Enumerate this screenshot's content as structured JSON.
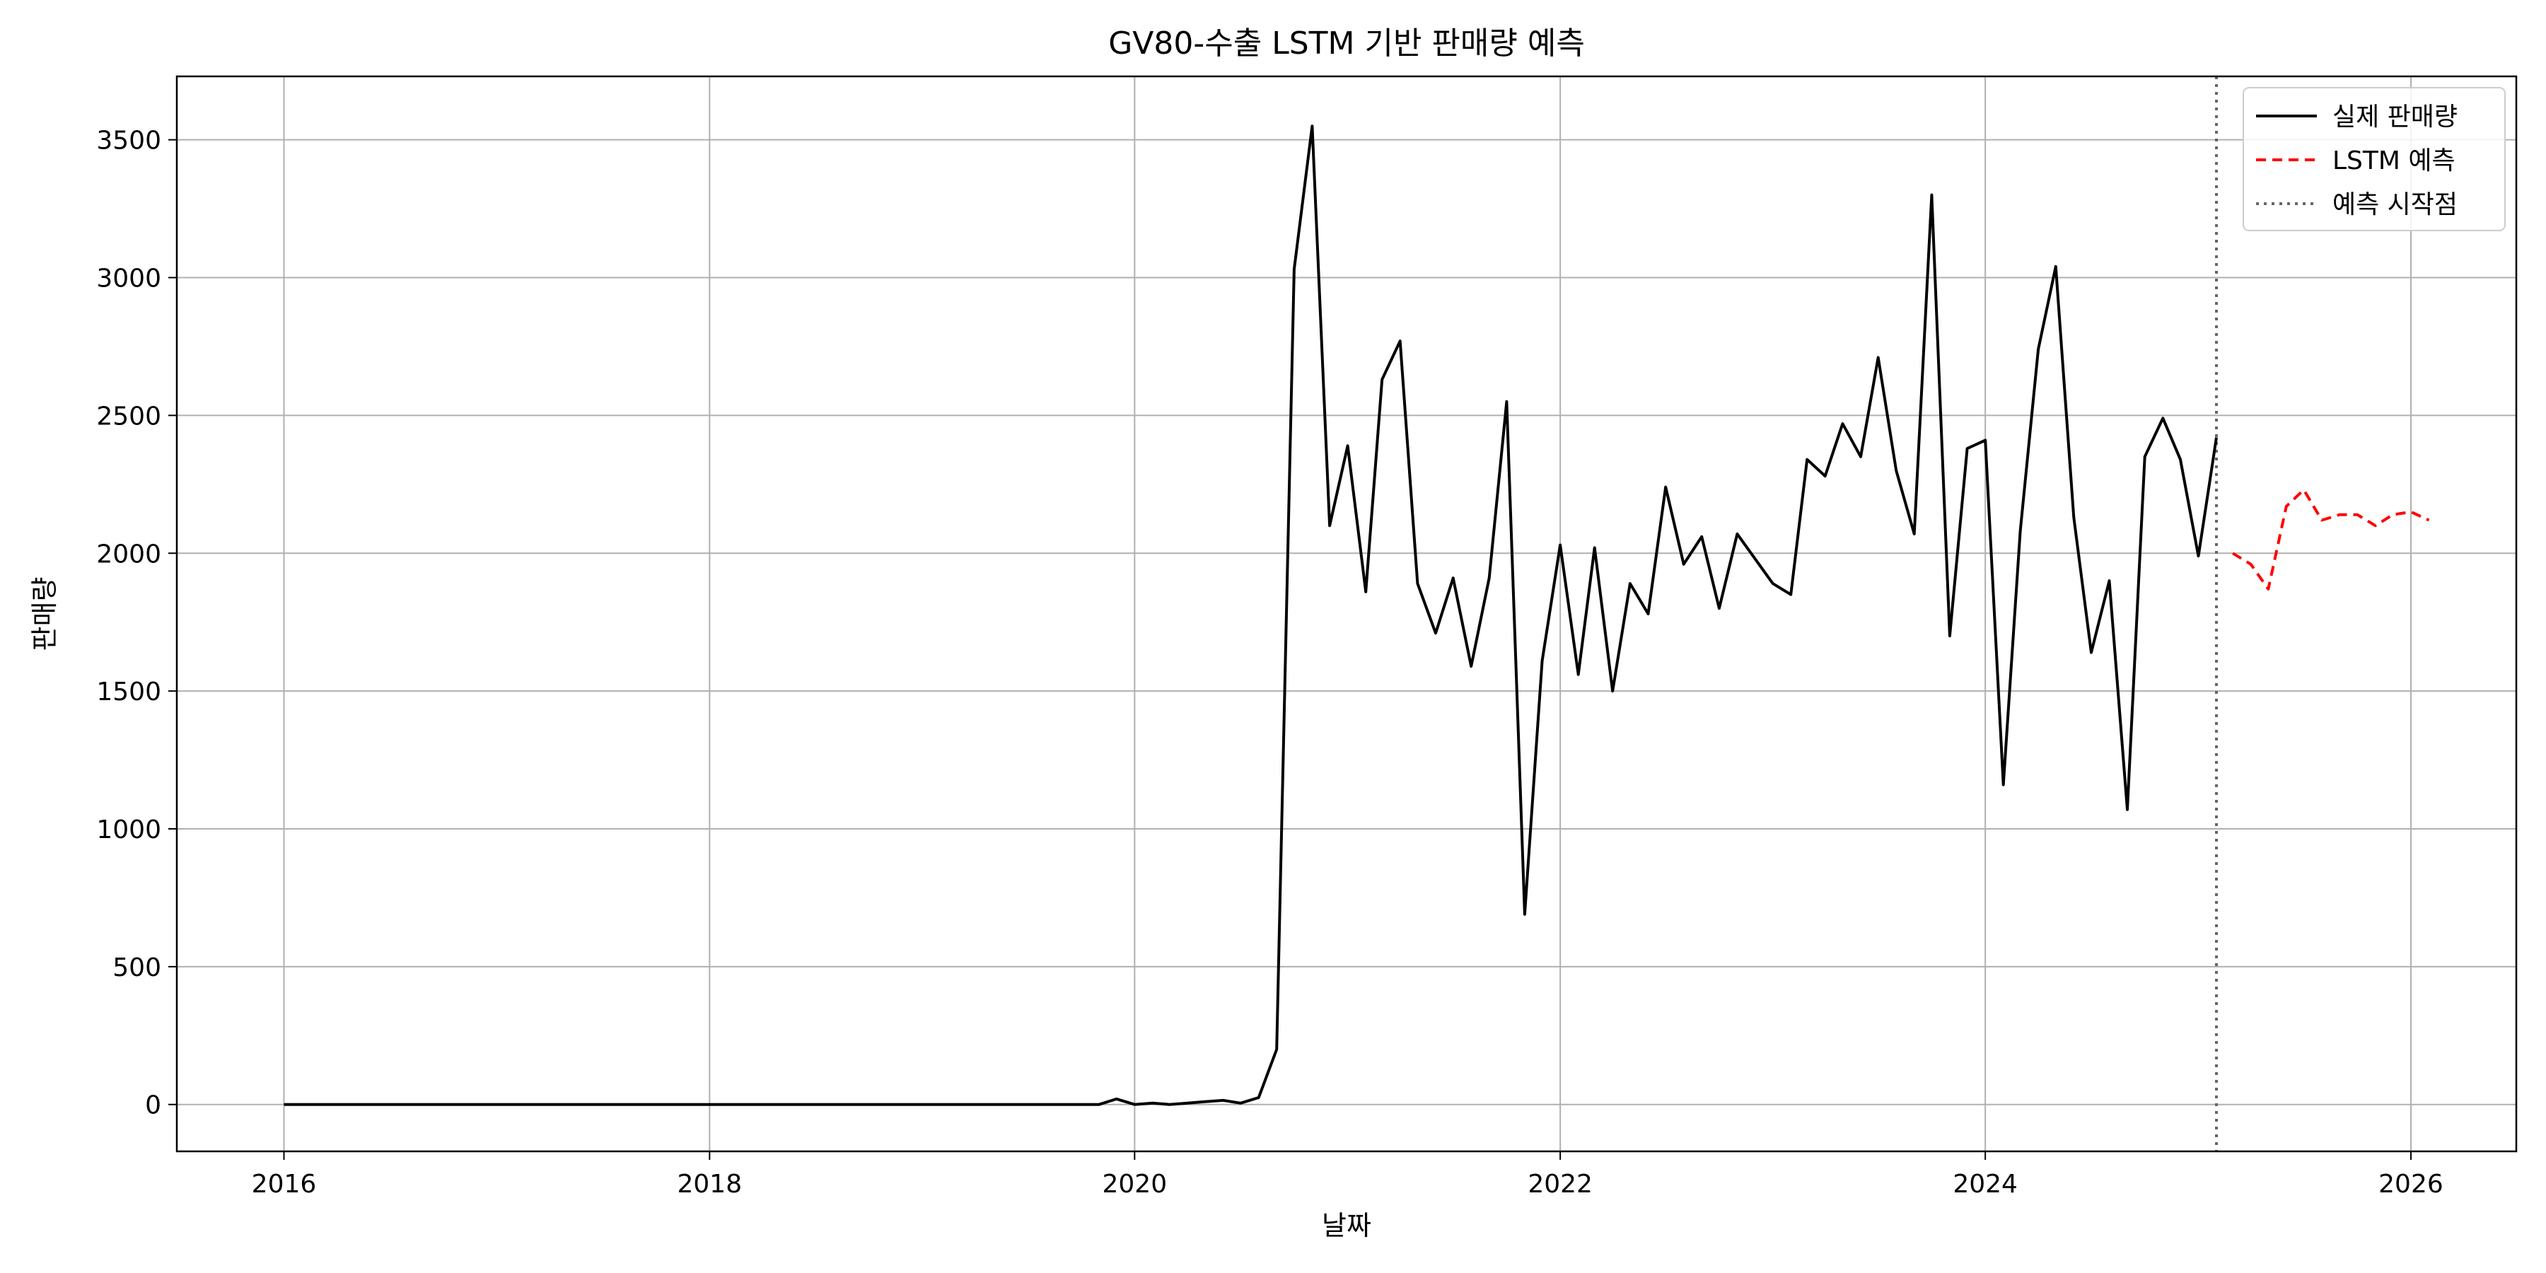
{
  "chart_data": {
    "type": "line",
    "title": "GV80-수출 LSTM 기반 판매량 예측",
    "xlabel": "날짜",
    "ylabel": "판매량",
    "xlim": [
      "2015-07-01",
      "2026-07-01"
    ],
    "ylim": [
      -170,
      3730
    ],
    "xticks": [
      "2016",
      "2018",
      "2020",
      "2022",
      "2024",
      "2026"
    ],
    "yticks": [
      0,
      500,
      1000,
      1500,
      2000,
      2500,
      3000,
      3500
    ],
    "grid": true,
    "legend_position": "top-right",
    "series": [
      {
        "name": "실제 판매량",
        "color": "#000000",
        "style": "solid",
        "points": [
          [
            "2016-01-01",
            0
          ],
          [
            "2016-02-01",
            0
          ],
          [
            "2016-03-01",
            0
          ],
          [
            "2016-04-01",
            0
          ],
          [
            "2016-05-01",
            0
          ],
          [
            "2016-06-01",
            0
          ],
          [
            "2016-07-01",
            0
          ],
          [
            "2016-08-01",
            0
          ],
          [
            "2016-09-01",
            0
          ],
          [
            "2016-10-01",
            0
          ],
          [
            "2016-11-01",
            0
          ],
          [
            "2016-12-01",
            0
          ],
          [
            "2017-01-01",
            0
          ],
          [
            "2017-02-01",
            0
          ],
          [
            "2017-03-01",
            0
          ],
          [
            "2017-04-01",
            0
          ],
          [
            "2017-05-01",
            0
          ],
          [
            "2017-06-01",
            0
          ],
          [
            "2017-07-01",
            0
          ],
          [
            "2017-08-01",
            0
          ],
          [
            "2017-09-01",
            0
          ],
          [
            "2017-10-01",
            0
          ],
          [
            "2017-11-01",
            0
          ],
          [
            "2017-12-01",
            0
          ],
          [
            "2018-01-01",
            0
          ],
          [
            "2018-02-01",
            0
          ],
          [
            "2018-03-01",
            0
          ],
          [
            "2018-04-01",
            0
          ],
          [
            "2018-05-01",
            0
          ],
          [
            "2018-06-01",
            0
          ],
          [
            "2018-07-01",
            0
          ],
          [
            "2018-08-01",
            0
          ],
          [
            "2018-09-01",
            0
          ],
          [
            "2018-10-01",
            0
          ],
          [
            "2018-11-01",
            0
          ],
          [
            "2018-12-01",
            0
          ],
          [
            "2019-01-01",
            0
          ],
          [
            "2019-02-01",
            0
          ],
          [
            "2019-03-01",
            0
          ],
          [
            "2019-04-01",
            0
          ],
          [
            "2019-05-01",
            0
          ],
          [
            "2019-06-01",
            0
          ],
          [
            "2019-07-01",
            0
          ],
          [
            "2019-08-01",
            0
          ],
          [
            "2019-09-01",
            0
          ],
          [
            "2019-10-01",
            0
          ],
          [
            "2019-11-01",
            0
          ],
          [
            "2019-12-01",
            20
          ],
          [
            "2020-01-01",
            0
          ],
          [
            "2020-02-01",
            5
          ],
          [
            "2020-03-01",
            0
          ],
          [
            "2020-04-01",
            5
          ],
          [
            "2020-05-01",
            10
          ],
          [
            "2020-06-01",
            15
          ],
          [
            "2020-07-01",
            5
          ],
          [
            "2020-08-01",
            25
          ],
          [
            "2020-09-01",
            200
          ],
          [
            "2020-10-01",
            3030
          ],
          [
            "2020-11-01",
            3550
          ],
          [
            "2020-12-01",
            2100
          ],
          [
            "2021-01-01",
            2390
          ],
          [
            "2021-02-01",
            1860
          ],
          [
            "2021-03-01",
            2630
          ],
          [
            "2021-04-01",
            2770
          ],
          [
            "2021-05-01",
            1890
          ],
          [
            "2021-06-01",
            1710
          ],
          [
            "2021-07-01",
            1910
          ],
          [
            "2021-08-01",
            1590
          ],
          [
            "2021-09-01",
            1910
          ],
          [
            "2021-10-01",
            2550
          ],
          [
            "2021-11-01",
            690
          ],
          [
            "2021-12-01",
            1610
          ],
          [
            "2022-01-01",
            2030
          ],
          [
            "2022-02-01",
            1560
          ],
          [
            "2022-03-01",
            2020
          ],
          [
            "2022-04-01",
            1500
          ],
          [
            "2022-05-01",
            1890
          ],
          [
            "2022-06-01",
            1780
          ],
          [
            "2022-07-01",
            2240
          ],
          [
            "2022-08-01",
            1960
          ],
          [
            "2022-09-01",
            2060
          ],
          [
            "2022-10-01",
            1800
          ],
          [
            "2022-11-01",
            2070
          ],
          [
            "2023-01-01",
            1890
          ],
          [
            "2023-02-01",
            1850
          ],
          [
            "2023-03-01",
            2340
          ],
          [
            "2023-04-01",
            2280
          ],
          [
            "2023-05-01",
            2470
          ],
          [
            "2023-06-01",
            2350
          ],
          [
            "2023-07-01",
            2710
          ],
          [
            "2023-08-01",
            2300
          ],
          [
            "2023-09-01",
            2070
          ],
          [
            "2023-10-01",
            3300
          ],
          [
            "2023-11-01",
            1700
          ],
          [
            "2023-12-01",
            2380
          ],
          [
            "2024-01-01",
            2410
          ],
          [
            "2024-02-01",
            1160
          ],
          [
            "2024-03-01",
            2080
          ],
          [
            "2024-04-01",
            2740
          ],
          [
            "2024-05-01",
            3040
          ],
          [
            "2024-06-01",
            2130
          ],
          [
            "2024-07-01",
            1640
          ],
          [
            "2024-08-01",
            1900
          ],
          [
            "2024-09-01",
            1070
          ],
          [
            "2024-10-01",
            2350
          ],
          [
            "2024-11-01",
            2490
          ],
          [
            "2024-12-01",
            2340
          ],
          [
            "2025-01-01",
            1990
          ],
          [
            "2025-02-01",
            2420
          ]
        ]
      },
      {
        "name": "LSTM 예측",
        "color": "#ff0000",
        "style": "dashed",
        "points": [
          [
            "2025-03-01",
            2000
          ],
          [
            "2025-04-01",
            1960
          ],
          [
            "2025-05-01",
            1870
          ],
          [
            "2025-06-01",
            2170
          ],
          [
            "2025-07-01",
            2230
          ],
          [
            "2025-08-01",
            2120
          ],
          [
            "2025-09-01",
            2140
          ],
          [
            "2025-10-01",
            2140
          ],
          [
            "2025-11-01",
            2100
          ],
          [
            "2025-12-01",
            2140
          ],
          [
            "2026-01-01",
            2150
          ],
          [
            "2026-02-01",
            2120
          ]
        ]
      }
    ],
    "vlines": [
      {
        "name": "예측 시작점",
        "x": "2025-02-01",
        "color": "#666666",
        "style": "dotted"
      }
    ]
  }
}
